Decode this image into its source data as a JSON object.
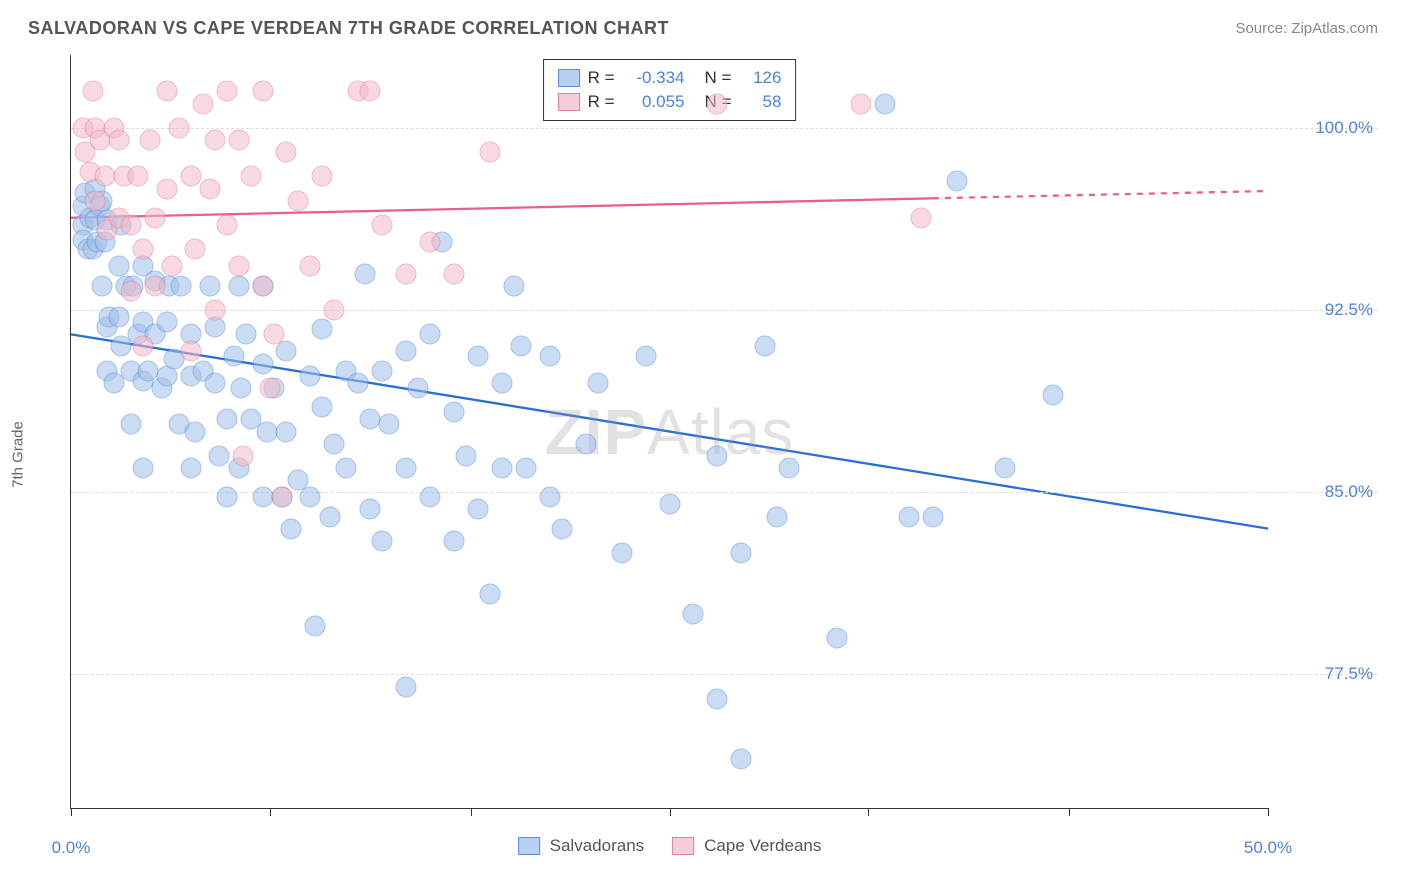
{
  "header": {
    "title": "SALVADORAN VS CAPE VERDEAN 7TH GRADE CORRELATION CHART",
    "source": "Source: ZipAtlas.com"
  },
  "y_label": "7th Grade",
  "watermark": {
    "bold": "ZIP",
    "light": "Atlas"
  },
  "chart": {
    "type": "scatter",
    "background_color": "#ffffff",
    "grid_color": "#dddddd",
    "axis_color": "#333333",
    "xlim": [
      0,
      50
    ],
    "ylim": [
      72,
      103
    ],
    "x_ticks": [
      0,
      8.3,
      16.7,
      25,
      33.3,
      41.7,
      50
    ],
    "x_tick_labels": {
      "0": "0.0%",
      "50": "50.0%"
    },
    "y_gridlines": [
      77.5,
      85.0,
      92.5,
      100.0
    ],
    "y_tick_labels": [
      "77.5%",
      "85.0%",
      "92.5%",
      "100.0%"
    ],
    "point_radius": 10.5,
    "point_opacity": 0.55,
    "series": [
      {
        "name": "Salvadorans",
        "color_fill": "#9fc0ea",
        "color_stroke": "#5a8fd6",
        "r_value": "-0.334",
        "n_value": "126",
        "trend": {
          "x1": 0,
          "y1": 91.5,
          "x2": 50,
          "y2": 83.5,
          "dash_from_x": 50,
          "color": "#2a6fd6",
          "width": 2.3
        },
        "points": [
          [
            0.5,
            96.8
          ],
          [
            0.5,
            96.0
          ],
          [
            0.5,
            95.4
          ],
          [
            0.6,
            97.3
          ],
          [
            0.7,
            95.0
          ],
          [
            0.8,
            96.3
          ],
          [
            0.9,
            95.0
          ],
          [
            1.0,
            97.5
          ],
          [
            1.0,
            96.2
          ],
          [
            1.1,
            95.3
          ],
          [
            1.2,
            96.8
          ],
          [
            1.3,
            97.0
          ],
          [
            1.3,
            93.5
          ],
          [
            1.4,
            95.3
          ],
          [
            1.5,
            96.2
          ],
          [
            1.5,
            91.8
          ],
          [
            1.5,
            90.0
          ],
          [
            1.6,
            92.2
          ],
          [
            1.8,
            89.5
          ],
          [
            2.0,
            94.3
          ],
          [
            2.0,
            92.2
          ],
          [
            2.1,
            96.0
          ],
          [
            2.1,
            91.0
          ],
          [
            2.3,
            93.5
          ],
          [
            2.5,
            90.0
          ],
          [
            2.5,
            87.8
          ],
          [
            2.6,
            93.5
          ],
          [
            2.8,
            91.5
          ],
          [
            3.0,
            94.3
          ],
          [
            3.0,
            92.0
          ],
          [
            3.0,
            89.6
          ],
          [
            3.0,
            86.0
          ],
          [
            3.2,
            90.0
          ],
          [
            3.5,
            93.7
          ],
          [
            3.5,
            91.5
          ],
          [
            3.8,
            89.3
          ],
          [
            4.0,
            92.0
          ],
          [
            4.0,
            89.8
          ],
          [
            4.1,
            93.5
          ],
          [
            4.3,
            90.5
          ],
          [
            4.5,
            87.8
          ],
          [
            4.6,
            93.5
          ],
          [
            5.0,
            91.5
          ],
          [
            5.0,
            89.8
          ],
          [
            5.0,
            86.0
          ],
          [
            5.2,
            87.5
          ],
          [
            5.5,
            90.0
          ],
          [
            5.8,
            93.5
          ],
          [
            6.0,
            91.8
          ],
          [
            6.0,
            89.5
          ],
          [
            6.2,
            86.5
          ],
          [
            6.5,
            88.0
          ],
          [
            6.5,
            84.8
          ],
          [
            6.8,
            90.6
          ],
          [
            7.0,
            93.5
          ],
          [
            7.0,
            86.0
          ],
          [
            7.1,
            89.3
          ],
          [
            7.3,
            91.5
          ],
          [
            7.5,
            88.0
          ],
          [
            8.0,
            93.5
          ],
          [
            8.0,
            90.3
          ],
          [
            8.0,
            84.8
          ],
          [
            8.2,
            87.5
          ],
          [
            8.5,
            89.3
          ],
          [
            8.8,
            84.8
          ],
          [
            9.0,
            90.8
          ],
          [
            9.0,
            87.5
          ],
          [
            9.2,
            83.5
          ],
          [
            9.5,
            85.5
          ],
          [
            10.0,
            89.8
          ],
          [
            10.0,
            84.8
          ],
          [
            10.2,
            79.5
          ],
          [
            10.5,
            91.7
          ],
          [
            10.5,
            88.5
          ],
          [
            10.8,
            84.0
          ],
          [
            11.0,
            87.0
          ],
          [
            11.5,
            90.0
          ],
          [
            11.5,
            86.0
          ],
          [
            12.0,
            89.5
          ],
          [
            12.3,
            94.0
          ],
          [
            12.5,
            88.0
          ],
          [
            12.5,
            84.3
          ],
          [
            13.0,
            90.0
          ],
          [
            13.0,
            83.0
          ],
          [
            13.3,
            87.8
          ],
          [
            14.0,
            90.8
          ],
          [
            14.0,
            86.0
          ],
          [
            14.0,
            77.0
          ],
          [
            14.5,
            89.3
          ],
          [
            15.0,
            91.5
          ],
          [
            15.0,
            84.8
          ],
          [
            15.5,
            95.3
          ],
          [
            16.0,
            88.3
          ],
          [
            16.0,
            83.0
          ],
          [
            16.5,
            86.5
          ],
          [
            17.0,
            90.6
          ],
          [
            17.0,
            84.3
          ],
          [
            17.5,
            80.8
          ],
          [
            18.0,
            89.5
          ],
          [
            18.0,
            86.0
          ],
          [
            18.5,
            93.5
          ],
          [
            18.8,
            91.0
          ],
          [
            19.0,
            86.0
          ],
          [
            20.0,
            90.6
          ],
          [
            20.0,
            84.8
          ],
          [
            20.5,
            83.5
          ],
          [
            21.5,
            87.0
          ],
          [
            22.0,
            89.5
          ],
          [
            23.0,
            82.5
          ],
          [
            24.0,
            90.6
          ],
          [
            25.0,
            84.5
          ],
          [
            26.0,
            80.0
          ],
          [
            27.0,
            86.5
          ],
          [
            27.0,
            76.5
          ],
          [
            28.0,
            82.5
          ],
          [
            28.0,
            74.0
          ],
          [
            29.0,
            91.0
          ],
          [
            29.5,
            84.0
          ],
          [
            30.0,
            86.0
          ],
          [
            32.0,
            79.0
          ],
          [
            34.0,
            101.0
          ],
          [
            35.0,
            84.0
          ],
          [
            36.0,
            84.0
          ],
          [
            37.0,
            97.8
          ],
          [
            39.0,
            86.0
          ],
          [
            41.0,
            89.0
          ]
        ]
      },
      {
        "name": "Cape Verdeans",
        "color_fill": "#f3b9c9",
        "color_stroke": "#e37fa0",
        "r_value": "0.055",
        "n_value": "58",
        "trend": {
          "x1": 0,
          "y1": 96.3,
          "x2": 36,
          "y2": 97.1,
          "dash_from_x": 36,
          "dash_x2": 50,
          "dash_y2": 97.4,
          "color": "#e85f8c",
          "width": 2.3
        },
        "points": [
          [
            0.5,
            100.0
          ],
          [
            0.6,
            99.0
          ],
          [
            0.8,
            98.2
          ],
          [
            0.9,
            101.5
          ],
          [
            1.0,
            100.0
          ],
          [
            1.0,
            97.0
          ],
          [
            1.2,
            99.5
          ],
          [
            1.4,
            98.0
          ],
          [
            1.5,
            95.8
          ],
          [
            1.8,
            100.0
          ],
          [
            2.0,
            99.5
          ],
          [
            2.0,
            96.3
          ],
          [
            2.2,
            98.0
          ],
          [
            2.5,
            96.0
          ],
          [
            2.5,
            93.3
          ],
          [
            2.8,
            98.0
          ],
          [
            3.0,
            95.0
          ],
          [
            3.0,
            91.0
          ],
          [
            3.3,
            99.5
          ],
          [
            3.5,
            96.3
          ],
          [
            3.5,
            93.5
          ],
          [
            4.0,
            101.5
          ],
          [
            4.0,
            97.5
          ],
          [
            4.2,
            94.3
          ],
          [
            4.5,
            100.0
          ],
          [
            5.0,
            98.0
          ],
          [
            5.0,
            90.8
          ],
          [
            5.2,
            95.0
          ],
          [
            5.5,
            101.0
          ],
          [
            5.8,
            97.5
          ],
          [
            6.0,
            99.5
          ],
          [
            6.0,
            92.5
          ],
          [
            6.5,
            101.5
          ],
          [
            6.5,
            96.0
          ],
          [
            7.0,
            99.5
          ],
          [
            7.0,
            94.3
          ],
          [
            7.2,
            86.5
          ],
          [
            7.5,
            98.0
          ],
          [
            8.0,
            101.5
          ],
          [
            8.0,
            93.5
          ],
          [
            8.3,
            89.3
          ],
          [
            8.5,
            91.5
          ],
          [
            8.8,
            84.8
          ],
          [
            9.0,
            99.0
          ],
          [
            9.5,
            97.0
          ],
          [
            10.0,
            94.3
          ],
          [
            10.5,
            98.0
          ],
          [
            11.0,
            92.5
          ],
          [
            12.0,
            101.5
          ],
          [
            12.5,
            101.5
          ],
          [
            13.0,
            96.0
          ],
          [
            14.0,
            94.0
          ],
          [
            15.0,
            95.3
          ],
          [
            16.0,
            94.0
          ],
          [
            17.5,
            99.0
          ],
          [
            27.0,
            101.0
          ],
          [
            33.0,
            101.0
          ],
          [
            35.5,
            96.3
          ]
        ]
      }
    ],
    "legend_top": [
      {
        "swatch_fill": "#b9d1f0",
        "swatch_stroke": "#5a8fd6",
        "r_label": "R =",
        "r_value": "-0.334",
        "n_label": "N =",
        "n_value": "126"
      },
      {
        "swatch_fill": "#f7cdd9",
        "swatch_stroke": "#e37fa0",
        "r_label": "R =",
        "r_value": "0.055",
        "n_label": "N =",
        "n_value": "58"
      }
    ],
    "legend_bottom": [
      {
        "swatch_fill": "#b9d1f0",
        "swatch_stroke": "#5a8fd6",
        "label": "Salvadorans"
      },
      {
        "swatch_fill": "#f7cdd9",
        "swatch_stroke": "#e37fa0",
        "label": "Cape Verdeans"
      }
    ]
  }
}
